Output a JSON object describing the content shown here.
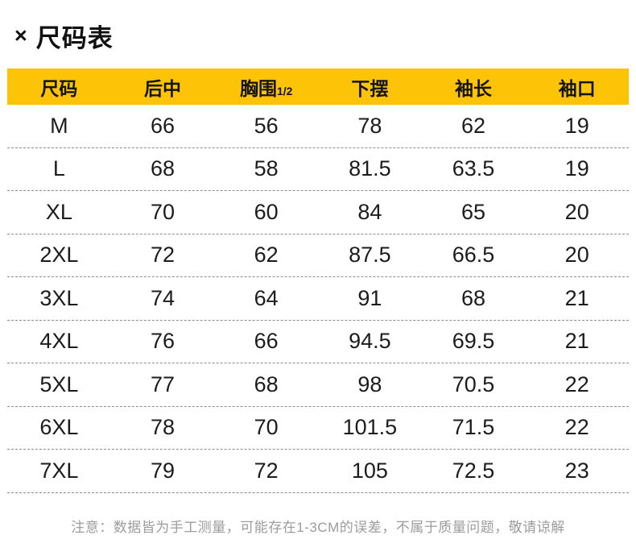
{
  "title": {
    "icon": "×",
    "text": "尺码表"
  },
  "table": {
    "columns": [
      {
        "label": "尺码",
        "sub": ""
      },
      {
        "label": "后中",
        "sub": ""
      },
      {
        "label": "胸围",
        "sub": "1/2"
      },
      {
        "label": "下摆",
        "sub": ""
      },
      {
        "label": "袖长",
        "sub": ""
      },
      {
        "label": "袖口",
        "sub": ""
      }
    ],
    "rows": [
      [
        "M",
        "66",
        "56",
        "78",
        "62",
        "19"
      ],
      [
        "L",
        "68",
        "58",
        "81.5",
        "63.5",
        "19"
      ],
      [
        "XL",
        "70",
        "60",
        "84",
        "65",
        "20"
      ],
      [
        "2XL",
        "72",
        "62",
        "87.5",
        "66.5",
        "20"
      ],
      [
        "3XL",
        "74",
        "64",
        "91",
        "68",
        "21"
      ],
      [
        "4XL",
        "76",
        "66",
        "94.5",
        "69.5",
        "21"
      ],
      [
        "5XL",
        "77",
        "68",
        "98",
        "70.5",
        "22"
      ],
      [
        "6XL",
        "78",
        "70",
        "101.5",
        "71.5",
        "22"
      ],
      [
        "7XL",
        "79",
        "72",
        "105",
        "72.5",
        "23"
      ]
    ]
  },
  "footer": {
    "note": "注意：数据皆为手工测量，可能存在1-3CM的误差，不属于质量问题，敬请谅解"
  },
  "colors": {
    "header_bg": "#fcc307",
    "text": "#1c1c1c",
    "divider": "#8c8c8c",
    "note": "#9c9c9c"
  }
}
